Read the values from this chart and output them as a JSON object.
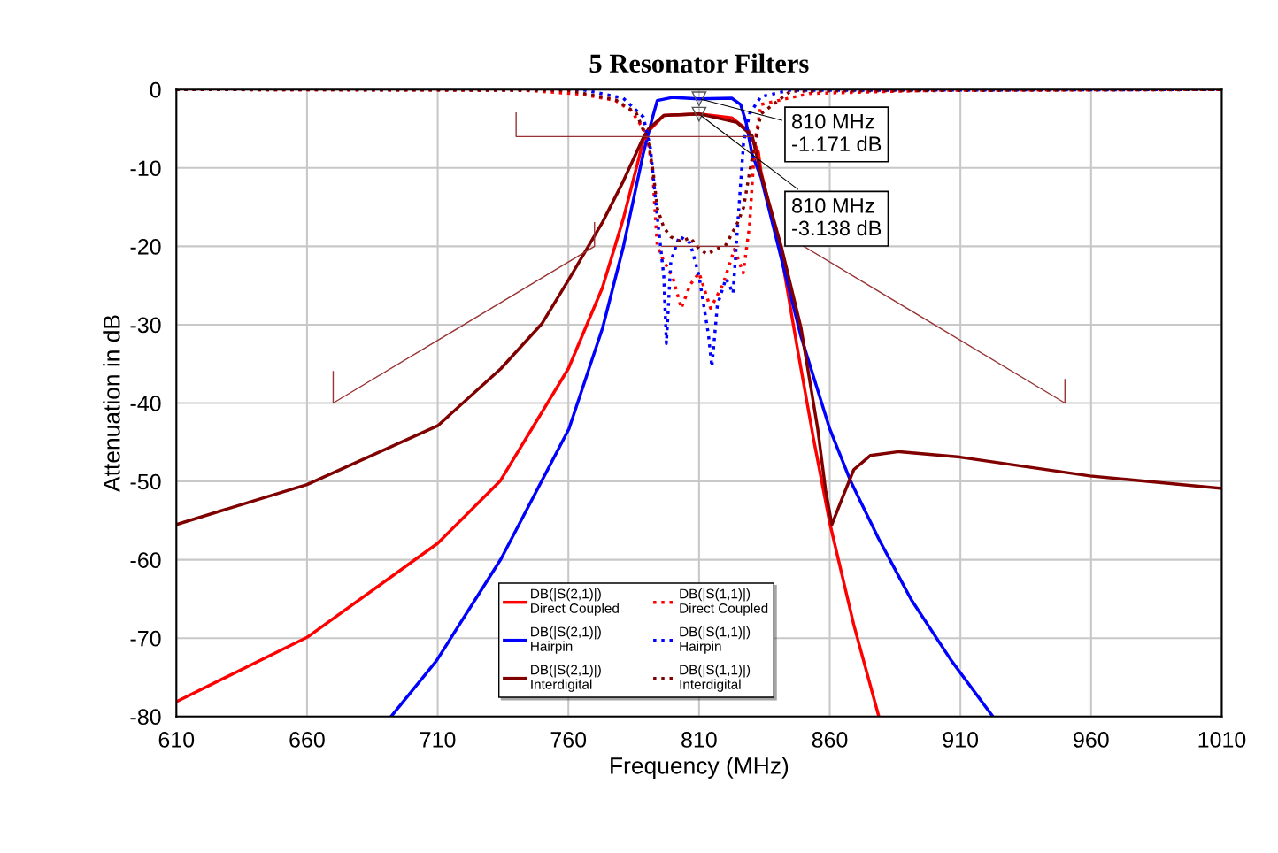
{
  "chart_data": {
    "type": "line",
    "title": "5 Resonator Filters",
    "xlabel": "Frequency (MHz)",
    "ylabel": "Attenuation in dB",
    "xlim": [
      610,
      1010
    ],
    "xticks": [
      610,
      660,
      710,
      760,
      810,
      860,
      910,
      960,
      1010
    ],
    "ylim": [
      -80,
      0
    ],
    "yticks": [
      0,
      -10,
      -20,
      -30,
      -40,
      -50,
      -60,
      -70,
      -80
    ],
    "grid": true,
    "legend": "bottom",
    "annotations": [
      {
        "text": "810 MHz\n-1.171 dB",
        "x": 810,
        "y": -1.171
      },
      {
        "text": "810 MHz\n-3.138 dB",
        "x": 810,
        "y": -3.138
      }
    ],
    "series": [
      {
        "name": "DB(|S(2,1)|)\nDirect Coupled",
        "color": "#ff0000",
        "line_style": "solid",
        "x": [
          610,
          660,
          710,
          734,
          760,
          773,
          781,
          789,
          790.7,
          796.5,
          810,
          822.5,
          829,
          832.7,
          833.7,
          841.5,
          847.6,
          853.7,
          860,
          869.2,
          878.7
        ],
        "values": [
          -78.1,
          -69.9,
          -57.9,
          -49.9,
          -35.6,
          -25.3,
          -16.5,
          -6.1,
          -5.3,
          -3.3,
          -3.1,
          -3.6,
          -5.3,
          -8,
          -10.5,
          -21.1,
          -33,
          -44.4,
          -55.3,
          -68.3,
          -79.9
        ]
      },
      {
        "name": "DB(|S(2,1)|)\nHairpin",
        "color": "#0000ff",
        "line_style": "solid",
        "x": [
          692.4,
          709.5,
          734.2,
          760.2,
          773.1,
          781,
          788.7,
          792,
          794,
          799.8,
          810,
          822.5,
          825.9,
          828,
          830.3,
          833.7,
          841.5,
          849,
          860,
          867.9,
          878.7,
          891.2,
          906.6,
          922.2
        ],
        "values": [
          -79.9,
          -72.9,
          -59.9,
          -43.3,
          -30.4,
          -20.1,
          -8.1,
          -3.8,
          -1.4,
          -1.0,
          -1.2,
          -1.1,
          -1.9,
          -4.2,
          -8.3,
          -11.2,
          -21.6,
          -31.5,
          -43.3,
          -49.9,
          -57.3,
          -65.1,
          -72.9,
          -79.9
        ]
      },
      {
        "name": "DB(|S(2,1)|)\nInterdigital",
        "color": "#800000",
        "line_style": "solid",
        "x": [
          610,
          660,
          710,
          734.2,
          749.8,
          760.2,
          773.1,
          781,
          788.7,
          790.7,
          796.5,
          810,
          824.5,
          830.3,
          833.7,
          841.5,
          849,
          855.4,
          858.4,
          860.8,
          864.7,
          869.2,
          875.5,
          886.5,
          909.8,
          959.6,
          1010
        ],
        "values": [
          -55.5,
          -50.4,
          -42.9,
          -35.6,
          -29.9,
          -24.2,
          -16.9,
          -11.7,
          -6.1,
          -5,
          -3.3,
          -3.1,
          -4.2,
          -5.9,
          -10.8,
          -20.1,
          -30.4,
          -43.3,
          -51.1,
          -55.5,
          -52.2,
          -48.5,
          -46.7,
          -46.2,
          -46.9,
          -49.3,
          -50.9
        ]
      },
      {
        "name": "DB(|S(1,1)|)\nDirect Coupled",
        "color": "#ff0000",
        "line_style": "dotted",
        "x": [
          610,
          743.7,
          765.3,
          778,
          784,
          788.7,
          790.7,
          792.4,
          794,
          796.5,
          799.8,
          803.2,
          806.6,
          810,
          814.4,
          819.1,
          823.5,
          826.9,
          829.3,
          831.3,
          833.7,
          852.3,
          900,
          1010
        ],
        "values": [
          0,
          -0.1,
          -0.6,
          -1.4,
          -2.7,
          -5,
          -6.9,
          -11.4,
          -20,
          -21.9,
          -23.8,
          -27.9,
          -24.9,
          -23.4,
          -27.9,
          -24.9,
          -20.4,
          -23.4,
          -17.4,
          -6.9,
          -1.9,
          -0.5,
          -0.1,
          0
        ]
      },
      {
        "name": "DB(|S(1,1)|)\nHairpin",
        "color": "#0000ff",
        "line_style": "dotted",
        "x": [
          610,
          765.3,
          781,
          788.7,
          791.4,
          794,
          796.5,
          797.5,
          799.2,
          802.5,
          806.6,
          810,
          813.6,
          814.9,
          817,
          820.3,
          823,
          824.6,
          827,
          829.3,
          833.7,
          844.5,
          1010
        ],
        "values": [
          0,
          0,
          -1.1,
          -3.5,
          -7.5,
          -16.2,
          -23.8,
          -32.4,
          -21.9,
          -18.7,
          -19.6,
          -23.8,
          -31.3,
          -35.4,
          -27.5,
          -24.1,
          -26,
          -18.1,
          -6.9,
          -3.1,
          -0.9,
          -0.1,
          0
        ]
      },
      {
        "name": "DB(|S(1,1)|)\nInterdigital",
        "color": "#800000",
        "line_style": "dotted",
        "x": [
          610,
          760,
          778,
          786,
          790.7,
          792.4,
          794,
          796.5,
          799.2,
          803.2,
          806.6,
          810,
          813,
          817,
          820.3,
          824.6,
          827,
          829.3,
          831.3,
          833.7,
          845,
          1010
        ],
        "values": [
          0,
          -0.1,
          -1.3,
          -3,
          -6.9,
          -10.4,
          -15.1,
          -17.6,
          -18.8,
          -19.4,
          -18.9,
          -20.3,
          -21,
          -20.3,
          -19.8,
          -17.1,
          -15.1,
          -10.6,
          -6.9,
          -3.1,
          -0.2,
          0
        ]
      },
      {
        "color": "#993333",
        "line_style": "solid",
        "x": [
          670,
          670,
          770,
          770
        ],
        "values": [
          -36,
          -40,
          -20,
          -17
        ]
      },
      {
        "color": "#993333",
        "line_style": "solid",
        "x": [
          740,
          740,
          830.3
        ],
        "values": [
          -3,
          -6,
          -6
        ]
      },
      {
        "color": "#993333",
        "line_style": "solid",
        "x": [
          795.8,
          825.2
        ],
        "values": [
          -20,
          -20
        ]
      },
      {
        "color": "#993333",
        "line_style": "solid",
        "x": [
          850,
          950,
          950
        ],
        "values": [
          -20,
          -40,
          -37
        ]
      }
    ]
  }
}
